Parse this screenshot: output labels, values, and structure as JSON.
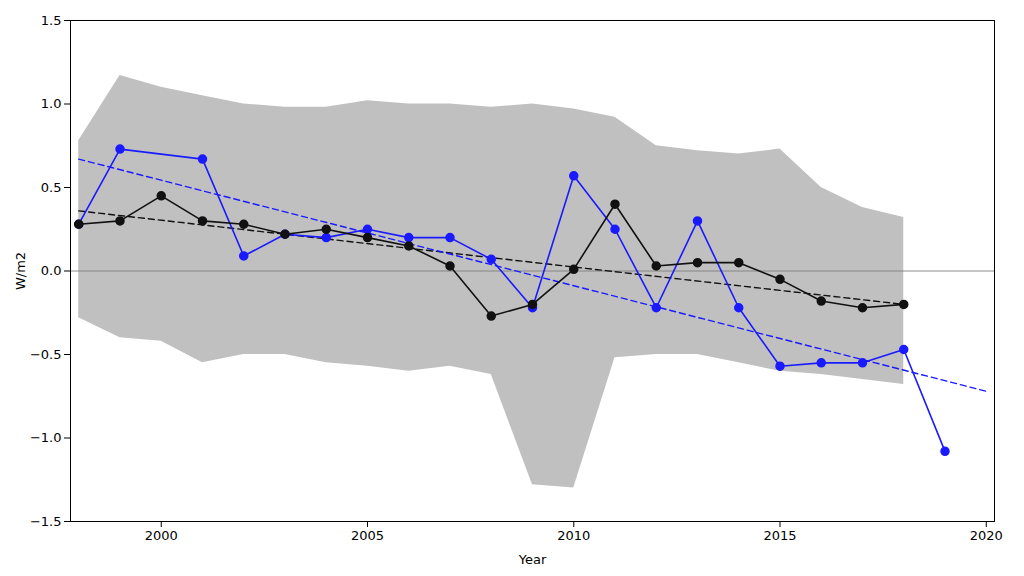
{
  "chart_data": {
    "type": "line",
    "xlabel": "Year",
    "ylabel": "W/m2",
    "xlim": [
      1997.8,
      2020.2
    ],
    "ylim": [
      -1.5,
      1.5
    ],
    "xticks": [
      2000,
      2005,
      2010,
      2015,
      2020
    ],
    "yticks": [
      {
        "value": -1.5,
        "label": "−1.5"
      },
      {
        "value": -1.0,
        "label": "−1.0"
      },
      {
        "value": -0.5,
        "label": "−0.5"
      },
      {
        "value": 0.0,
        "label": "0.0"
      },
      {
        "value": 0.5,
        "label": "0.5"
      },
      {
        "value": 1.0,
        "label": "1.0"
      },
      {
        "value": 1.5,
        "label": "1.5"
      }
    ],
    "grid": false,
    "band": {
      "x": [
        1998,
        1999,
        2000,
        2001,
        2002,
        2003,
        2004,
        2005,
        2006,
        2007,
        2008,
        2009,
        2010,
        2011,
        2012,
        2013,
        2014,
        2015,
        2016,
        2017,
        2018
      ],
      "upper": [
        0.78,
        1.17,
        1.1,
        1.05,
        1.0,
        0.98,
        0.98,
        1.02,
        1.0,
        1.0,
        0.98,
        1.0,
        0.97,
        0.92,
        0.75,
        0.72,
        0.7,
        0.73,
        0.5,
        0.38,
        0.32
      ],
      "lower": [
        -0.28,
        -0.4,
        -0.42,
        -0.55,
        -0.5,
        -0.5,
        -0.55,
        -0.57,
        -0.6,
        -0.57,
        -0.62,
        -1.28,
        -1.3,
        -0.52,
        -0.5,
        -0.5,
        -0.55,
        -0.6,
        -0.62,
        -0.65,
        -0.68
      ],
      "color": "#c0c0c0"
    },
    "hlines": [
      {
        "y": 0,
        "color": "#808080"
      }
    ],
    "series": [
      {
        "x": [
          1998,
          2018
        ],
        "values": [
          0.36,
          -0.2
        ],
        "color": "#111111",
        "line_style": "dashed"
      },
      {
        "x": [
          1998,
          2020
        ],
        "values": [
          0.67,
          -0.72
        ],
        "color": "#1a1aff",
        "line_style": "dashed"
      },
      {
        "x": [
          1998,
          1999,
          2001,
          2002,
          2003,
          2004,
          2005,
          2006,
          2007,
          2008,
          2009,
          2010,
          2011,
          2012,
          2013,
          2014,
          2015,
          2016,
          2017,
          2018,
          2019
        ],
        "values": [
          0.28,
          0.73,
          0.67,
          0.09,
          0.22,
          0.2,
          0.25,
          0.2,
          0.2,
          0.07,
          -0.22,
          0.57,
          0.25,
          -0.22,
          0.3,
          -0.22,
          -0.57,
          -0.55,
          -0.55,
          -0.47,
          -1.08
        ],
        "color": "#1a1aff",
        "line_style": "solid",
        "marker": "circle"
      },
      {
        "x": [
          1998,
          1999,
          2000,
          2001,
          2002,
          2003,
          2004,
          2005,
          2006,
          2007,
          2008,
          2009,
          2010,
          2011,
          2012,
          2013,
          2014,
          2015,
          2016,
          2017,
          2018
        ],
        "values": [
          0.28,
          0.3,
          0.45,
          0.3,
          0.28,
          0.22,
          0.25,
          0.2,
          0.15,
          0.03,
          -0.27,
          -0.2,
          0.01,
          0.4,
          0.03,
          0.05,
          0.05,
          -0.05,
          -0.18,
          -0.22,
          -0.2
        ],
        "color": "#111111",
        "line_style": "solid",
        "marker": "circle"
      }
    ]
  }
}
